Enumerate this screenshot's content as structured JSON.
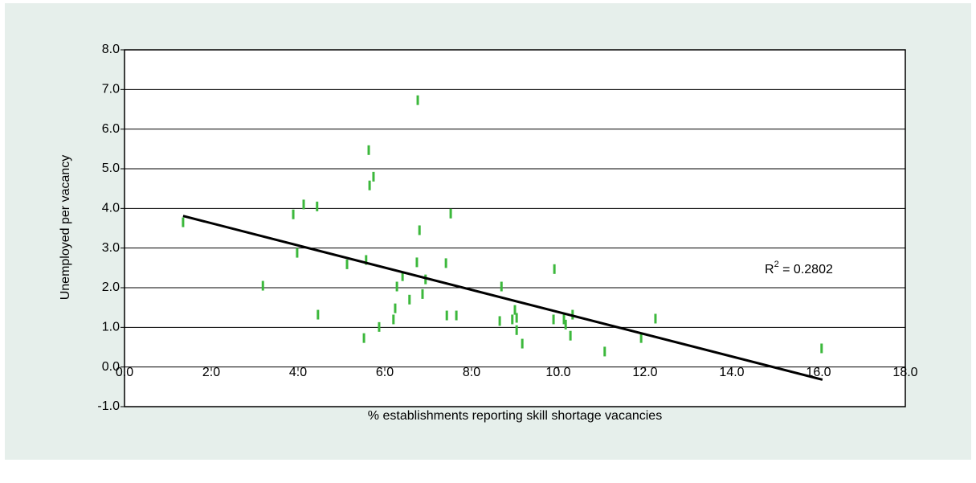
{
  "chart_data": {
    "type": "scatter",
    "x_label": "% establishments reporting skill shortage vacancies",
    "y_label": "Unemployed per vacancy",
    "color": "#3cb83c",
    "x": [
      1.35,
      3.19,
      3.89,
      3.98,
      4.13,
      4.44,
      4.46,
      5.13,
      5.52,
      5.57,
      5.63,
      5.65,
      5.74,
      5.87,
      6.2,
      6.24,
      6.28,
      6.41,
      6.57,
      6.74,
      6.76,
      6.8,
      6.87,
      6.94,
      7.41,
      7.43,
      7.52,
      7.65,
      8.65,
      8.69,
      8.94,
      9.0,
      9.04,
      9.04,
      9.17,
      9.91,
      9.89,
      10.13,
      10.17,
      10.28,
      10.33,
      11.07,
      11.91,
      12.24,
      16.07
    ],
    "values": [
      3.65,
      2.05,
      3.85,
      2.88,
      4.1,
      4.05,
      1.32,
      2.59,
      0.73,
      2.7,
      5.47,
      4.58,
      4.8,
      1.01,
      1.2,
      1.48,
      2.03,
      2.29,
      1.7,
      2.64,
      6.73,
      3.45,
      1.84,
      2.21,
      2.62,
      1.3,
      3.87,
      1.3,
      1.16,
      2.03,
      1.2,
      1.44,
      1.24,
      0.93,
      0.59,
      2.47,
      1.2,
      1.2,
      1.07,
      0.79,
      1.32,
      0.39,
      0.73,
      1.22,
      0.47
    ],
    "trendline": {
      "x": [
        1.35,
        16.09
      ],
      "y": [
        3.81,
        -0.32
      ],
      "color": "#000000"
    },
    "annotation": {
      "base": "R",
      "sup": "2",
      "rest": " = 0.2802"
    },
    "xlim": [
      0,
      18
    ],
    "ylim": [
      -1,
      8
    ],
    "xticks": [
      {
        "value": 0,
        "label": "0.0"
      },
      {
        "value": 2,
        "label": "2.0"
      },
      {
        "value": 4,
        "label": "4.0"
      },
      {
        "value": 6,
        "label": "6.0"
      },
      {
        "value": 8,
        "label": "8.0"
      },
      {
        "value": 10,
        "label": "10.0"
      },
      {
        "value": 12,
        "label": "12.0"
      },
      {
        "value": 14,
        "label": "14.0"
      },
      {
        "value": 16,
        "label": "16.0"
      },
      {
        "value": 18,
        "label": "18.0"
      }
    ],
    "yticks": [
      {
        "value": -1,
        "label": "-1.0"
      },
      {
        "value": 0,
        "label": "0.0"
      },
      {
        "value": 1,
        "label": "1.0"
      },
      {
        "value": 2,
        "label": "2.0"
      },
      {
        "value": 3,
        "label": "3.0"
      },
      {
        "value": 4,
        "label": "4.0"
      },
      {
        "value": 5,
        "label": "5.0"
      },
      {
        "value": 6,
        "label": "6.0"
      },
      {
        "value": 7,
        "label": "7.0"
      },
      {
        "value": 8,
        "label": "8.0"
      }
    ],
    "grid": true
  }
}
